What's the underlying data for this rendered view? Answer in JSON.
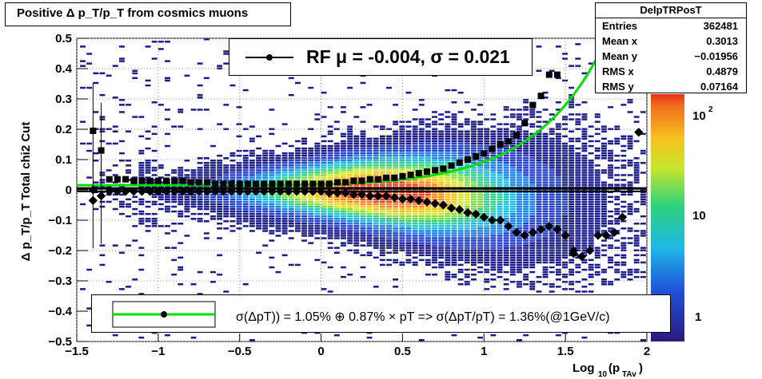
{
  "title": "Positive Δ p_T/p_T from cosmics muons",
  "stats": {
    "name": "DelpTRPosT",
    "rows": [
      {
        "label": "Entries",
        "value": "362481"
      },
      {
        "label": "Mean x",
        "value": "0.3013"
      },
      {
        "label": "Mean y",
        "value": "−0.01956"
      },
      {
        "label": "RMS x",
        "value": "0.4879"
      },
      {
        "label": "RMS y",
        "value": "0.07164"
      }
    ]
  },
  "legend_rf": "RF μ = -0.004, σ =   0.021",
  "legend_fit": "σ(ΔpT)) =  1.05% ⊕  0.87% × pT => σ(ΔpT/pT) =  1.36%(@1GeV/c)",
  "axes": {
    "x_label_main": "Log",
    "x_label_sub": "10",
    "x_label_arg": "(p",
    "x_label_argsub": "TAv",
    "x_label_end": ")",
    "y_label": "Δ p_T/p_T  Total chi2 Cut",
    "x_ticks": [
      "−1.5",
      "−1",
      "−0.5",
      "0",
      "0.5",
      "1",
      "1.5",
      "2"
    ],
    "y_ticks": [
      "−0.5",
      "−0.4",
      "−0.3",
      "−0.2",
      "−0.1",
      "0",
      "0.1",
      "0.2",
      "0.3",
      "0.4",
      "0.5"
    ],
    "z_ticks": [
      "1",
      "10",
      "10^2"
    ]
  },
  "chart_data": {
    "type": "heatmap",
    "title": "Positive Δ p_T/p_T from cosmics muons",
    "xlabel": "Log10(p_TAv)",
    "ylabel": "Δ p_T/p_T  Total chi2 Cut",
    "xlim": [
      -1.5,
      2
    ],
    "ylim": [
      -0.5,
      0.5
    ],
    "zscale": "log",
    "grid": true,
    "legend_position": "top-center and bottom-center",
    "colors": {
      "fit": "#00dd00",
      "mean_markers": "#000000"
    },
    "series": [
      {
        "name": "upper_sigma_markers",
        "x": [
          -1.4,
          -1.35,
          -1.3,
          -1.25,
          -1.2,
          -1.15,
          -1.1,
          -1.05,
          -1.0,
          -0.95,
          -0.9,
          -0.85,
          -0.8,
          -0.75,
          -0.7,
          -0.65,
          -0.6,
          -0.55,
          -0.5,
          -0.45,
          -0.4,
          -0.35,
          -0.3,
          -0.25,
          -0.2,
          -0.15,
          -0.1,
          -0.05,
          0.0,
          0.05,
          0.1,
          0.15,
          0.2,
          0.25,
          0.3,
          0.35,
          0.4,
          0.45,
          0.5,
          0.55,
          0.6,
          0.65,
          0.7,
          0.75,
          0.8,
          0.85,
          0.9,
          0.95,
          1.0,
          1.05,
          1.1,
          1.15,
          1.2,
          1.25,
          1.3,
          1.35,
          1.4,
          1.45
        ],
        "y": [
          0.195,
          0.13,
          0.035,
          0.035,
          0.035,
          0.03,
          0.03,
          0.03,
          0.03,
          0.03,
          0.03,
          0.03,
          0.025,
          0.025,
          0.025,
          0.02,
          0.02,
          0.02,
          0.02,
          0.02,
          0.02,
          0.02,
          0.02,
          0.02,
          0.02,
          0.02,
          0.02,
          0.02,
          0.02,
          0.02,
          0.025,
          0.025,
          0.03,
          0.03,
          0.035,
          0.035,
          0.04,
          0.04,
          0.045,
          0.05,
          0.055,
          0.06,
          0.065,
          0.07,
          0.08,
          0.09,
          0.1,
          0.11,
          0.12,
          0.135,
          0.15,
          0.16,
          0.18,
          0.22,
          0.28,
          0.31,
          0.38,
          0.38
        ]
      },
      {
        "name": "lower_sigma_markers",
        "x": [
          -1.4,
          -1.35,
          -1.3,
          -1.25,
          -1.2,
          -1.15,
          -1.1,
          -1.05,
          -1.0,
          -0.95,
          -0.9,
          -0.85,
          -0.8,
          -0.75,
          -0.7,
          -0.65,
          -0.6,
          -0.55,
          -0.5,
          -0.45,
          -0.4,
          -0.35,
          -0.3,
          -0.25,
          -0.2,
          -0.15,
          -0.1,
          -0.05,
          0.0,
          0.05,
          0.1,
          0.15,
          0.2,
          0.25,
          0.3,
          0.35,
          0.4,
          0.45,
          0.5,
          0.55,
          0.6,
          0.65,
          0.7,
          0.75,
          0.8,
          0.85,
          0.9,
          0.95,
          1.0,
          1.05,
          1.1,
          1.15,
          1.2,
          1.25,
          1.3,
          1.35,
          1.4,
          1.45,
          1.5,
          1.55,
          1.6,
          1.65,
          1.7,
          1.75,
          1.8,
          1.85
        ],
        "y": [
          -0.035,
          -0.02,
          -0.005,
          -0.005,
          -0.005,
          -0.005,
          -0.005,
          -0.005,
          -0.005,
          -0.005,
          -0.005,
          -0.005,
          -0.005,
          -0.005,
          -0.005,
          -0.005,
          -0.005,
          -0.005,
          -0.005,
          -0.005,
          -0.005,
          -0.005,
          -0.005,
          -0.005,
          -0.005,
          -0.005,
          -0.005,
          -0.005,
          -0.005,
          -0.01,
          -0.01,
          -0.01,
          -0.015,
          -0.015,
          -0.02,
          -0.02,
          -0.02,
          -0.025,
          -0.03,
          -0.03,
          -0.035,
          -0.04,
          -0.045,
          -0.05,
          -0.06,
          -0.065,
          -0.075,
          -0.08,
          -0.09,
          -0.1,
          -0.1,
          -0.12,
          -0.14,
          -0.15,
          -0.14,
          -0.13,
          -0.12,
          -0.13,
          -0.15,
          -0.2,
          -0.22,
          -0.2,
          -0.15,
          -0.15,
          -0.14,
          -0.09
        ]
      }
    ],
    "outliers": [
      {
        "x": 1.95,
        "y": 0.19
      },
      {
        "x": 1.55,
        "y": -0.21
      },
      {
        "x": -1.4,
        "y": 0.0
      }
    ],
    "fit_curve": {
      "sigma_const_percent": 1.05,
      "sigma_slope_percent": 0.87,
      "offset": 0.005
    }
  }
}
